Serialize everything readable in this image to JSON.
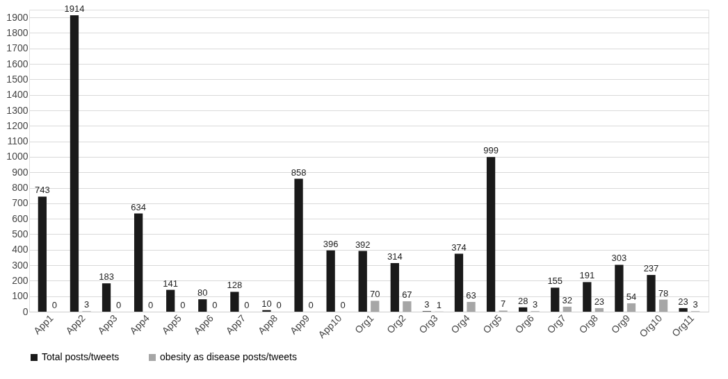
{
  "chart_data": {
    "type": "bar",
    "categories": [
      "App1",
      "App2",
      "App3",
      "App4",
      "App5",
      "App6",
      "App7",
      "App8",
      "App9",
      "App10",
      "Org1",
      "Org2",
      "Org3",
      "Org4",
      "Org5",
      "Org6",
      "Org7",
      "Org8",
      "Org9",
      "Org10",
      "Org11"
    ],
    "series": [
      {
        "name": "Total posts/tweets",
        "color": "#1a1a1a",
        "values": [
          743,
          1914,
          183,
          634,
          141,
          80,
          128,
          10,
          858,
          396,
          392,
          314,
          3,
          374,
          999,
          28,
          155,
          191,
          303,
          237,
          23
        ]
      },
      {
        "name": "obesity as disease posts/tweets",
        "color": "#a6a6a6",
        "values": [
          0,
          3,
          0,
          0,
          0,
          0,
          0,
          0,
          0,
          0,
          70,
          67,
          1,
          63,
          7,
          3,
          32,
          23,
          54,
          78,
          3
        ]
      }
    ],
    "ylim": [
      0,
      1950
    ],
    "yticks": [
      0,
      100,
      200,
      300,
      400,
      500,
      600,
      700,
      800,
      900,
      1000,
      1100,
      1200,
      1300,
      1400,
      1500,
      1600,
      1700,
      1800,
      1900
    ],
    "grid": "y",
    "legend": "bottom",
    "data_labels": true
  }
}
